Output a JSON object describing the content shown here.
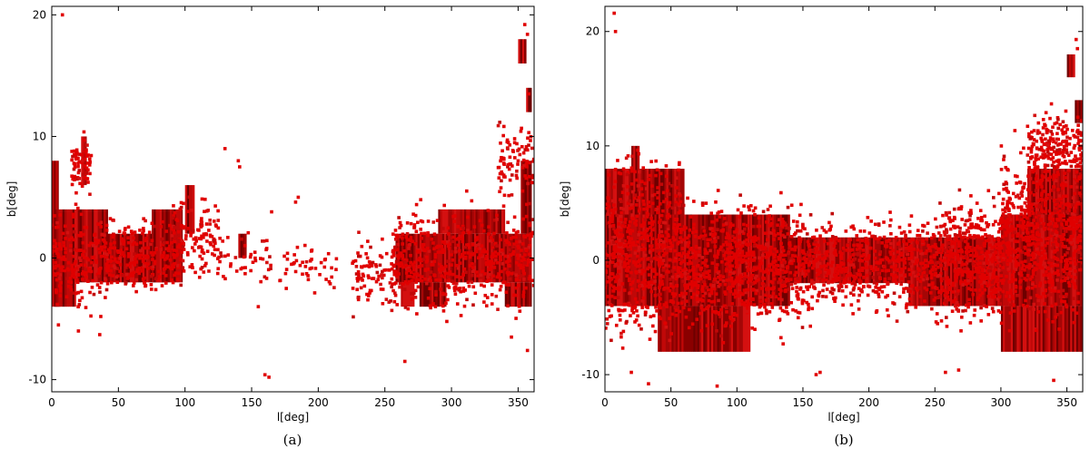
{
  "chart_data": [
    {
      "type": "scatter",
      "panel_label": "(a)",
      "xlabel": "l[deg]",
      "ylabel": "b[deg]",
      "xlim": [
        0,
        362
      ],
      "ylim": [
        -11,
        20.7
      ],
      "xticks": [
        0,
        50,
        100,
        150,
        200,
        250,
        300,
        350
      ],
      "yticks": [
        -10,
        0,
        10,
        20
      ],
      "marker_color": "#e00000",
      "tile_colors": [
        "#6e0000",
        "#8a0000",
        "#a50606",
        "#c00808",
        "#d41010"
      ],
      "tiles": [
        {
          "l": [
            0,
            5
          ],
          "b": [
            0,
            8
          ]
        },
        {
          "l": [
            0,
            6
          ],
          "b": [
            -4,
            0
          ]
        },
        {
          "l": [
            2,
            18
          ],
          "b": [
            -4,
            4
          ]
        },
        {
          "l": [
            18,
            42
          ],
          "b": [
            -2,
            4
          ]
        },
        {
          "l": [
            42,
            62
          ],
          "b": [
            -2,
            2
          ]
        },
        {
          "l": [
            62,
            85
          ],
          "b": [
            -2,
            2
          ]
        },
        {
          "l": [
            75,
            98
          ],
          "b": [
            -2,
            4
          ]
        },
        {
          "l": [
            22,
            26
          ],
          "b": [
            6,
            10
          ]
        },
        {
          "l": [
            100,
            107
          ],
          "b": [
            2,
            6
          ]
        },
        {
          "l": [
            140,
            146
          ],
          "b": [
            0,
            2
          ]
        },
        {
          "l": [
            258,
            290
          ],
          "b": [
            -2,
            2
          ]
        },
        {
          "l": [
            290,
            322
          ],
          "b": [
            -2,
            2
          ]
        },
        {
          "l": [
            322,
            360
          ],
          "b": [
            -2,
            2
          ]
        },
        {
          "l": [
            262,
            272
          ],
          "b": [
            -4,
            -2
          ]
        },
        {
          "l": [
            276,
            296
          ],
          "b": [
            -4,
            -2
          ]
        },
        {
          "l": [
            290,
            318
          ],
          "b": [
            2,
            4
          ]
        },
        {
          "l": [
            318,
            340
          ],
          "b": [
            2,
            4
          ]
        },
        {
          "l": [
            340,
            360
          ],
          "b": [
            -4,
            -2
          ]
        },
        {
          "l": [
            352,
            360
          ],
          "b": [
            2,
            8
          ]
        },
        {
          "l": [
            350,
            356
          ],
          "b": [
            16,
            18
          ]
        },
        {
          "l": [
            356,
            360
          ],
          "b": [
            12,
            14
          ]
        }
      ],
      "clusters": [
        {
          "l": [
            0,
            42
          ],
          "b": [
            -6,
            6
          ],
          "n": 220
        },
        {
          "l": [
            15,
            30
          ],
          "b": [
            4,
            11
          ],
          "n": 70
        },
        {
          "l": [
            40,
            100
          ],
          "b": [
            -4,
            4
          ],
          "n": 260
        },
        {
          "l": [
            90,
            125
          ],
          "b": [
            -3,
            6
          ],
          "n": 140
        },
        {
          "l": [
            125,
            165
          ],
          "b": [
            -3,
            3
          ],
          "n": 45
        },
        {
          "l": [
            170,
            215
          ],
          "b": [
            -3,
            2
          ],
          "n": 45
        },
        {
          "l": [
            225,
            260
          ],
          "b": [
            -6,
            3
          ],
          "n": 90
        },
        {
          "l": [
            255,
            300
          ],
          "b": [
            -6,
            6
          ],
          "n": 260
        },
        {
          "l": [
            300,
            362
          ],
          "b": [
            -6,
            6
          ],
          "n": 320
        },
        {
          "l": [
            335,
            362
          ],
          "b": [
            4,
            12
          ],
          "n": 90
        }
      ],
      "points": [
        {
          "l": 8,
          "b": 20.0
        },
        {
          "l": 130,
          "b": 9.0
        },
        {
          "l": 140,
          "b": 8.0
        },
        {
          "l": 141,
          "b": 7.5
        },
        {
          "l": 163,
          "b": -9.8
        },
        {
          "l": 160,
          "b": -9.6
        },
        {
          "l": 165,
          "b": 3.8
        },
        {
          "l": 185,
          "b": 5.0
        },
        {
          "l": 183,
          "b": 4.6
        },
        {
          "l": 176,
          "b": -2.5
        },
        {
          "l": 155,
          "b": -4.0
        },
        {
          "l": 265,
          "b": -8.5
        },
        {
          "l": 355,
          "b": 19.2
        },
        {
          "l": 357,
          "b": 18.4
        },
        {
          "l": 358,
          "b": 13.5
        },
        {
          "l": 357,
          "b": -7.6
        },
        {
          "l": 345,
          "b": -6.5
        },
        {
          "l": 36,
          "b": -6.3
        },
        {
          "l": 20,
          "b": -6.0
        },
        {
          "l": 5,
          "b": -5.5
        }
      ]
    },
    {
      "type": "scatter",
      "panel_label": "(b)",
      "xlabel": "l[deg]",
      "ylabel": "b[deg]",
      "xlim": [
        0,
        362
      ],
      "ylim": [
        -11.5,
        22.2
      ],
      "xticks": [
        0,
        50,
        100,
        150,
        200,
        250,
        300,
        350
      ],
      "yticks": [
        -10,
        0,
        10,
        20
      ],
      "marker_color": "#e00000",
      "tile_colors": [
        "#6e0000",
        "#8a0000",
        "#a50606",
        "#c00808",
        "#d41010"
      ],
      "tiles": [
        {
          "l": [
            0,
            60
          ],
          "b": [
            -4,
            8
          ]
        },
        {
          "l": [
            0,
            110
          ],
          "b": [
            -4,
            4
          ]
        },
        {
          "l": [
            110,
            140
          ],
          "b": [
            -4,
            4
          ]
        },
        {
          "l": [
            140,
            170
          ],
          "b": [
            -2,
            2
          ]
        },
        {
          "l": [
            170,
            230
          ],
          "b": [
            -2,
            2
          ]
        },
        {
          "l": [
            230,
            300
          ],
          "b": [
            -4,
            2
          ]
        },
        {
          "l": [
            300,
            362
          ],
          "b": [
            -4,
            4
          ]
        },
        {
          "l": [
            320,
            362
          ],
          "b": [
            4,
            8
          ]
        },
        {
          "l": [
            40,
            110
          ],
          "b": [
            -8,
            -4
          ]
        },
        {
          "l": [
            300,
            362
          ],
          "b": [
            -8,
            -4
          ]
        },
        {
          "l": [
            20,
            26
          ],
          "b": [
            6,
            10
          ]
        },
        {
          "l": [
            350,
            356
          ],
          "b": [
            16,
            18
          ]
        },
        {
          "l": [
            356,
            362
          ],
          "b": [
            12,
            14
          ]
        }
      ],
      "clusters": [
        {
          "l": [
            0,
            60
          ],
          "b": [
            -9,
            11
          ],
          "n": 700
        },
        {
          "l": [
            60,
            150
          ],
          "b": [
            -8,
            7
          ],
          "n": 800
        },
        {
          "l": [
            150,
            250
          ],
          "b": [
            -6,
            5
          ],
          "n": 600
        },
        {
          "l": [
            250,
            300
          ],
          "b": [
            -7,
            7
          ],
          "n": 550
        },
        {
          "l": [
            300,
            362
          ],
          "b": [
            -8,
            12
          ],
          "n": 800
        },
        {
          "l": [
            320,
            362
          ],
          "b": [
            6,
            14
          ],
          "n": 200
        }
      ],
      "points": [
        {
          "l": 7,
          "b": 21.6
        },
        {
          "l": 8,
          "b": 20.0
        },
        {
          "l": 163,
          "b": -9.8
        },
        {
          "l": 160,
          "b": -10.0
        },
        {
          "l": 33,
          "b": -10.8
        },
        {
          "l": 20,
          "b": -9.8
        },
        {
          "l": 258,
          "b": -9.8
        },
        {
          "l": 340,
          "b": -10.5
        },
        {
          "l": 357,
          "b": 19.3
        },
        {
          "l": 358,
          "b": 18.5
        },
        {
          "l": 85,
          "b": -11.0
        },
        {
          "l": 268,
          "b": -9.6
        }
      ]
    }
  ]
}
